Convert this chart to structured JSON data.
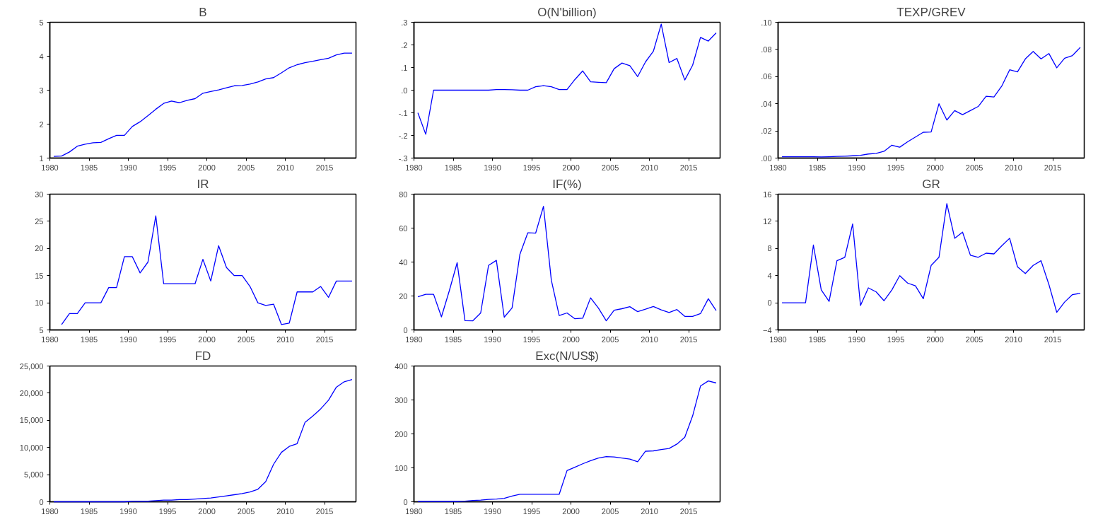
{
  "chart_data": [
    {
      "type": "line",
      "title": "B",
      "color": "#0000ff",
      "x": [
        1980.5,
        1981.5,
        1982.5,
        1983.5,
        1984.5,
        1985.5,
        1986.5,
        1987.5,
        1988.5,
        1989.5,
        1990.5,
        1991.5,
        1992.5,
        1993.5,
        1994.5,
        1995.5,
        1996.5,
        1997.5,
        1998.5,
        1999.5,
        2000.5,
        2001.5,
        2002.5,
        2003.5,
        2004.5,
        2005.5,
        2006.5,
        2007.5,
        2008.5,
        2009.5,
        2010.5,
        2011.5,
        2012.5,
        2013.5,
        2014.5,
        2015.5,
        2016.5,
        2017.5,
        2018.5
      ],
      "values": [
        1.05,
        1.06,
        1.18,
        1.35,
        1.41,
        1.45,
        1.46,
        1.57,
        1.67,
        1.67,
        1.93,
        2.07,
        2.25,
        2.44,
        2.61,
        2.68,
        2.63,
        2.7,
        2.75,
        2.91,
        2.96,
        3.01,
        3.07,
        3.13,
        3.14,
        3.18,
        3.24,
        3.33,
        3.37,
        3.51,
        3.66,
        3.75,
        3.81,
        3.85,
        3.9,
        3.94,
        4.04,
        4.09,
        4.09
      ],
      "xlim": [
        1980,
        2019
      ],
      "xticks": [
        1980,
        1985,
        1990,
        1995,
        2000,
        2005,
        2010,
        2015
      ],
      "ylim": [
        1,
        5
      ],
      "yticks": [
        1,
        2,
        3,
        4,
        5
      ]
    },
    {
      "type": "line",
      "title": "O(N'billion)",
      "color": "#0000ff",
      "x": [
        1980.5,
        1981.5,
        1982.5,
        1983.5,
        1984.5,
        1985.5,
        1986.5,
        1987.5,
        1988.5,
        1989.5,
        1990.5,
        1991.5,
        1992.5,
        1993.5,
        1994.5,
        1995.5,
        1996.5,
        1997.5,
        1998.5,
        1999.5,
        2000.5,
        2001.5,
        2002.5,
        2003.5,
        2004.5,
        2005.5,
        2006.5,
        2007.5,
        2008.5,
        2009.5,
        2010.5,
        2011.5,
        2012.5,
        2013.5,
        2014.5,
        2015.5,
        2016.5,
        2017.5,
        2018.5
      ],
      "values": [
        -0.1,
        -0.195,
        0.0,
        0.0,
        0.0,
        0.0,
        0.0,
        0.0,
        0.0,
        0.0,
        0.003,
        0.003,
        0.002,
        0.0,
        0.0,
        0.015,
        0.02,
        0.015,
        0.003,
        0.003,
        0.047,
        0.085,
        0.037,
        0.035,
        0.033,
        0.095,
        0.12,
        0.108,
        0.06,
        0.125,
        0.172,
        0.292,
        0.122,
        0.14,
        0.045,
        0.11,
        0.233,
        0.217,
        0.253
      ],
      "xlim": [
        1980,
        2019
      ],
      "xticks": [
        1980,
        1985,
        1990,
        1995,
        2000,
        2005,
        2010,
        2015
      ],
      "ylim": [
        -0.3,
        0.3
      ],
      "yticks": [
        {
          "value": -0.3,
          "label": "-.3"
        },
        {
          "value": -0.2,
          "label": "-.2"
        },
        {
          "value": -0.1,
          "label": "-.1"
        },
        {
          "value": 0,
          "label": ".0"
        },
        {
          "value": 0.1,
          "label": ".1"
        },
        {
          "value": 0.2,
          "label": ".2"
        },
        {
          "value": 0.3,
          "label": ".3"
        }
      ]
    },
    {
      "type": "line",
      "title": "TEXP/GREV",
      "color": "#0000ff",
      "x": [
        1980.5,
        1981.5,
        1982.5,
        1983.5,
        1984.5,
        1985.5,
        1986.5,
        1987.5,
        1988.5,
        1989.5,
        1990.5,
        1991.5,
        1992.5,
        1993.5,
        1994.5,
        1995.5,
        1996.5,
        1997.5,
        1998.5,
        1999.5,
        2000.5,
        2001.5,
        2002.5,
        2003.5,
        2004.5,
        2005.5,
        2006.5,
        2007.5,
        2008.5,
        2009.5,
        2010.5,
        2011.5,
        2012.5,
        2013.5,
        2014.5,
        2015.5,
        2016.5,
        2017.5,
        2018.5
      ],
      "values": [
        0.001,
        0.001,
        0.001,
        0.001,
        0.001,
        0.0008,
        0.001,
        0.0012,
        0.0014,
        0.0017,
        0.002,
        0.003,
        0.0035,
        0.005,
        0.0095,
        0.008,
        0.012,
        0.0155,
        0.019,
        0.0192,
        0.04,
        0.028,
        0.035,
        0.032,
        0.035,
        0.038,
        0.0455,
        0.045,
        0.053,
        0.065,
        0.0635,
        0.073,
        0.0785,
        0.073,
        0.077,
        0.0665,
        0.0735,
        0.0755,
        0.0815
      ],
      "xlim": [
        1980,
        2019
      ],
      "xticks": [
        1980,
        1985,
        1990,
        1995,
        2000,
        2005,
        2010,
        2015
      ],
      "ylim": [
        0,
        0.1
      ],
      "yticks": [
        {
          "value": 0,
          "label": ".00"
        },
        {
          "value": 0.02,
          "label": ".02"
        },
        {
          "value": 0.04,
          "label": ".04"
        },
        {
          "value": 0.06,
          "label": ".06"
        },
        {
          "value": 0.08,
          "label": ".08"
        },
        {
          "value": 0.1,
          "label": ".10"
        }
      ]
    },
    {
      "type": "line",
      "title": "IR",
      "color": "#0000ff",
      "x": [
        1981.5,
        1982.5,
        1983.5,
        1984.5,
        1985.5,
        1986.5,
        1987.5,
        1988.5,
        1989.5,
        1990.5,
        1991.5,
        1992.5,
        1993.5,
        1994.5,
        1995.5,
        1996.5,
        1997.5,
        1998.5,
        1999.5,
        2000.5,
        2001.5,
        2002.5,
        2003.5,
        2004.5,
        2005.5,
        2006.5,
        2007.5,
        2008.5,
        2009.5,
        2010.5,
        2011.5,
        2012.5,
        2013.5,
        2014.5,
        2015.5,
        2016.5,
        2017.5,
        2018.5
      ],
      "values": [
        6,
        8,
        8,
        10,
        10,
        10,
        12.8,
        12.8,
        18.5,
        18.5,
        15.5,
        17.5,
        26,
        13.5,
        13.5,
        13.5,
        13.5,
        13.5,
        18,
        14,
        20.5,
        16.5,
        15,
        15,
        13,
        10,
        9.5,
        9.75,
        6,
        6.25,
        12,
        12,
        12,
        13,
        11,
        14,
        14,
        14
      ],
      "xlim": [
        1980,
        2019
      ],
      "xticks": [
        1980,
        1985,
        1990,
        1995,
        2000,
        2005,
        2010,
        2015
      ],
      "ylim": [
        5,
        30
      ],
      "yticks": [
        5,
        10,
        15,
        20,
        25,
        30
      ]
    },
    {
      "type": "line",
      "title": "IF(%)",
      "color": "#0000ff",
      "x": [
        1980.5,
        1981.5,
        1982.5,
        1983.5,
        1984.5,
        1985.5,
        1986.5,
        1987.5,
        1988.5,
        1989.5,
        1990.5,
        1991.5,
        1992.5,
        1993.5,
        1994.5,
        1995.5,
        1996.5,
        1997.5,
        1998.5,
        1999.5,
        2000.5,
        2001.5,
        2002.5,
        2003.5,
        2004.5,
        2005.5,
        2006.5,
        2007.5,
        2008.5,
        2009.5,
        2010.5,
        2011.5,
        2012.5,
        2013.5,
        2014.5,
        2015.5,
        2016.5,
        2017.5,
        2018.5
      ],
      "values": [
        19.5,
        21,
        21,
        7.7,
        23,
        39.6,
        5.5,
        5.4,
        10,
        38,
        41,
        7.5,
        13,
        44.6,
        57.2,
        57,
        72.8,
        29.3,
        8.5,
        10,
        6.6,
        6.9,
        18.9,
        12.9,
        5.4,
        11.6,
        12.5,
        13.7,
        10.8,
        12.2,
        13.8,
        11.8,
        10.3,
        12,
        8,
        8,
        9.6,
        18.4,
        11.4
      ],
      "xlim": [
        1980,
        2019
      ],
      "xticks": [
        1980,
        1985,
        1990,
        1995,
        2000,
        2005,
        2010,
        2015
      ],
      "ylim": [
        0,
        80
      ],
      "yticks": [
        0,
        20,
        40,
        60,
        80
      ]
    },
    {
      "type": "line",
      "title": "GR",
      "color": "#0000ff",
      "x": [
        1980.5,
        1981.5,
        1982.5,
        1983.5,
        1984.5,
        1985.5,
        1986.5,
        1987.5,
        1988.5,
        1989.5,
        1990.5,
        1991.5,
        1992.5,
        1993.5,
        1994.5,
        1995.5,
        1996.5,
        1997.5,
        1998.5,
        1999.5,
        2000.5,
        2001.5,
        2002.5,
        2003.5,
        2004.5,
        2005.5,
        2006.5,
        2007.5,
        2008.5,
        2009.5,
        2010.5,
        2011.5,
        2012.5,
        2013.5,
        2014.5,
        2015.5,
        2016.5,
        2017.5,
        2018.5
      ],
      "values": [
        0,
        0,
        0,
        0,
        8.5,
        1.9,
        0.2,
        6.2,
        6.7,
        11.6,
        -0.4,
        2.2,
        1.6,
        0.3,
        1.9,
        4.0,
        2.9,
        2.5,
        0.6,
        5.5,
        6.7,
        14.6,
        9.5,
        10.4,
        7.0,
        6.7,
        7.3,
        7.2,
        8.4,
        9.5,
        5.3,
        4.3,
        5.5,
        6.2,
        2.7,
        -1.4,
        0.1,
        1.2,
        1.4
      ],
      "xlim": [
        1980,
        2019
      ],
      "xticks": [
        1980,
        1985,
        1990,
        1995,
        2000,
        2005,
        2010,
        2015
      ],
      "ylim": [
        -4,
        16
      ],
      "yticks": [
        -4,
        0,
        4,
        8,
        12,
        16
      ]
    },
    {
      "type": "line",
      "title": "FD",
      "color": "#0000ff",
      "x": [
        1980.5,
        1981.5,
        1982.5,
        1983.5,
        1984.5,
        1985.5,
        1986.5,
        1987.5,
        1988.5,
        1989.5,
        1990.5,
        1991.5,
        1992.5,
        1993.5,
        1994.5,
        1995.5,
        1996.5,
        1997.5,
        1998.5,
        1999.5,
        2000.5,
        2001.5,
        2002.5,
        2003.5,
        2004.5,
        2005.5,
        2006.5,
        2007.5,
        2008.5,
        2009.5,
        2010.5,
        2011.5,
        2012.5,
        2013.5,
        2014.5,
        2015.5,
        2016.5,
        2017.5,
        2018.5
      ],
      "values": [
        0,
        0,
        0,
        0,
        0,
        0,
        0,
        0,
        0,
        0,
        100,
        100,
        100,
        200,
        300,
        300,
        400,
        400,
        500,
        600,
        700,
        900,
        1100,
        1300,
        1500,
        1800,
        2300,
        3700,
        6900,
        9100,
        10200,
        10700,
        14600,
        15800,
        17100,
        18700,
        21100,
        22100,
        22500
      ],
      "xlim": [
        1980,
        2019
      ],
      "xticks": [
        1980,
        1985,
        1990,
        1995,
        2000,
        2005,
        2010,
        2015
      ],
      "ylim": [
        0,
        25000
      ],
      "yticks": [
        0,
        {
          "value": 5000,
          "label": "5,000"
        },
        {
          "value": 10000,
          "label": "10,000"
        },
        {
          "value": 15000,
          "label": "15,000"
        },
        {
          "value": 20000,
          "label": "20,000"
        },
        {
          "value": 25000,
          "label": "25,000"
        }
      ]
    },
    {
      "type": "line",
      "title": "Exc(N/US$)",
      "color": "#0000ff",
      "x": [
        1980.5,
        1981.5,
        1982.5,
        1983.5,
        1984.5,
        1985.5,
        1986.5,
        1987.5,
        1988.5,
        1989.5,
        1990.5,
        1991.5,
        1992.5,
        1993.5,
        1994.5,
        1995.5,
        1996.5,
        1997.5,
        1998.5,
        1999.5,
        2000.5,
        2001.5,
        2002.5,
        2003.5,
        2004.5,
        2005.5,
        2006.5,
        2007.5,
        2008.5,
        2009.5,
        2010.5,
        2011.5,
        2012.5,
        2013.5,
        2014.5,
        2015.5,
        2016.5,
        2017.5,
        2018.5
      ],
      "values": [
        1,
        1,
        1,
        1,
        1,
        1,
        2,
        4,
        5,
        7,
        8,
        10,
        17,
        22,
        22,
        22,
        22,
        22,
        22,
        92,
        102,
        112,
        121,
        129,
        133,
        132,
        129,
        126,
        118,
        149,
        150,
        154,
        157,
        170,
        190,
        253,
        341,
        356,
        350
      ],
      "xlim": [
        1980,
        2019
      ],
      "xticks": [
        1980,
        1985,
        1990,
        1995,
        2000,
        2005,
        2010,
        2015
      ],
      "ylim": [
        0,
        400
      ],
      "yticks": [
        0,
        100,
        200,
        300,
        400
      ]
    }
  ]
}
